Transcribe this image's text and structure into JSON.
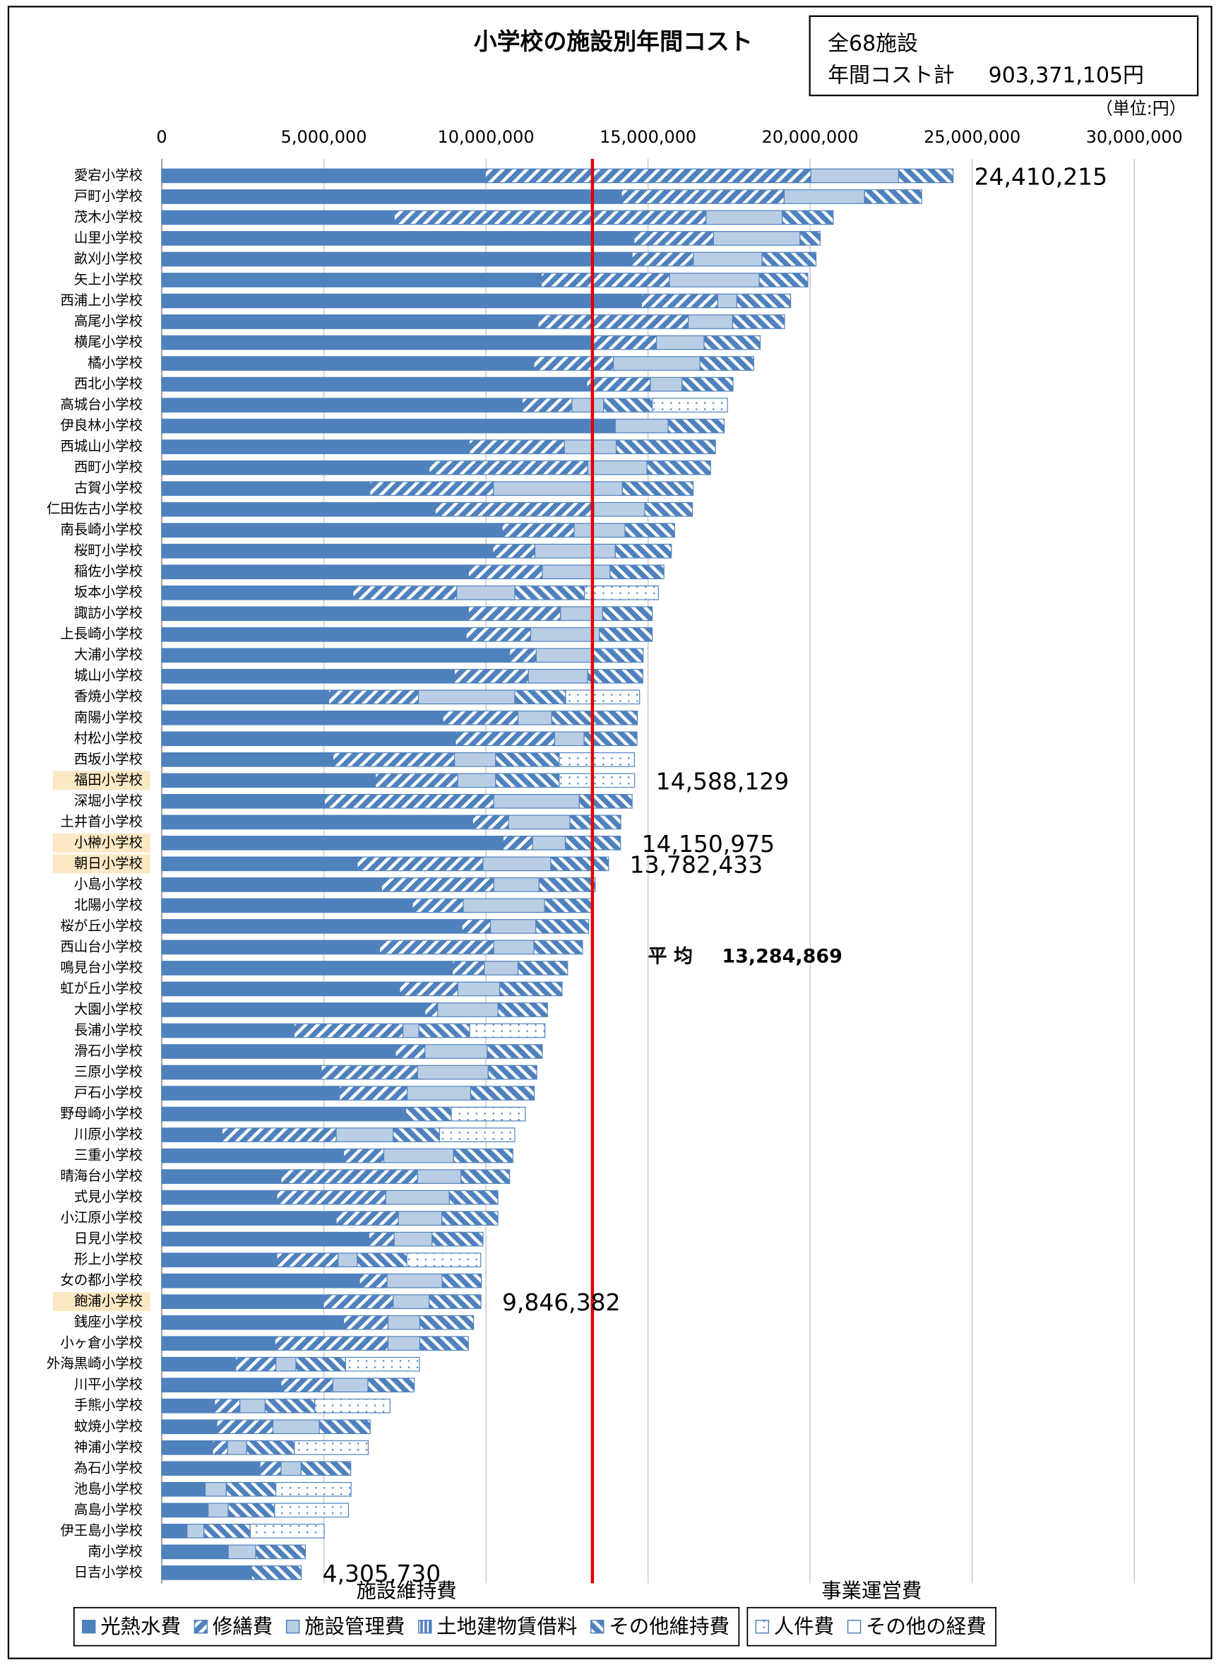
{
  "chart_data": {
    "type": "stacked_barh",
    "title": "小学校の施設別年間コスト",
    "info": {
      "total_label": "全68施設",
      "cost_label": "年間コスト計",
      "cost_value": "903,371,105円"
    },
    "unit": "（単位:円）",
    "xlim": [
      0,
      30000000
    ],
    "xticks": [
      0,
      {
        "value": 5000000,
        "label": "5,000,000"
      },
      {
        "value": 10000000,
        "label": "10,000,000"
      },
      {
        "value": 15000000,
        "label": "15,000,000"
      },
      {
        "value": 20000000,
        "label": "20,000,000"
      },
      {
        "value": 25000000,
        "label": "25,000,000"
      },
      {
        "value": 30000000,
        "label": "30,000,000"
      }
    ],
    "grid": true,
    "categories": [
      "愛宕小学校",
      "戸町小学校",
      "茂木小学校",
      "山里小学校",
      "畝刈小学校",
      "矢上小学校",
      "西浦上小学校",
      "高尾小学校",
      "横尾小学校",
      "橘小学校",
      "西北小学校",
      "高城台小学校",
      "伊良林小学校",
      "西城山小学校",
      "西町小学校",
      "古賀小学校",
      "仁田佐古小学校",
      "南長崎小学校",
      "桜町小学校",
      "稲佐小学校",
      "坂本小学校",
      "諏訪小学校",
      "上長崎小学校",
      "大浦小学校",
      "城山小学校",
      "香焼小学校",
      "南陽小学校",
      "村松小学校",
      "西坂小学校",
      "福田小学校",
      "深堀小学校",
      "土井首小学校",
      "小榊小学校",
      "朝日小学校",
      "小島小学校",
      "北陽小学校",
      "桜が丘小学校",
      "西山台小学校",
      "鳴見台小学校",
      "虹が丘小学校",
      "大園小学校",
      "長浦小学校",
      "滑石小学校",
      "三原小学校",
      "戸石小学校",
      "野母崎小学校",
      "川原小学校",
      "三重小学校",
      "晴海台小学校",
      "式見小学校",
      "小江原小学校",
      "日見小学校",
      "形上小学校",
      "女の都小学校",
      "飽浦小学校",
      "銭座小学校",
      "小ヶ倉小学校",
      "外海黒崎小学校",
      "川平小学校",
      "手熊小学校",
      "蚊焼小学校",
      "神浦小学校",
      "為石小学校",
      "池島小学校",
      "高島小学校",
      "伊王島小学校",
      "南小学校",
      "日吉小学校"
    ],
    "series": [
      {
        "name": "光熱水費",
        "color": "#4f81bd",
        "pattern": "solid",
        "values": [
          9980000,
          14180000,
          7170000,
          14570000,
          14510000,
          11710000,
          14800000,
          11610000,
          13270000,
          11480000,
          13110000,
          11120000,
          13990000,
          9490000,
          8250000,
          6420000,
          8440000,
          10500000,
          10210000,
          9460000,
          5900000,
          9460000,
          9390000,
          10730000,
          9030000,
          5150000,
          8670000,
          9060000,
          5280000,
          6590000,
          5020000,
          9590000,
          10530000,
          6030000,
          6780000,
          7730000,
          9260000,
          6720000,
          8970000,
          7340000,
          8120000,
          4080000,
          7210000,
          4920000,
          5480000,
          7530000,
          1860000,
          5610000,
          3680000,
          3550000,
          5380000,
          6390000,
          3550000,
          6100000,
          4990000,
          5610000,
          3490000,
          2280000,
          3680000,
          1630000,
          1700000,
          1570000,
          3030000,
          1340000,
          1430000,
          780000,
          2050000,
          2770000
        ]
      },
      {
        "name": "修繕費",
        "color": "#4f81bd",
        "pattern": "diagonal",
        "values": [
          10040000,
          5020000,
          9620000,
          2450000,
          1890000,
          3950000,
          2350000,
          4630000,
          1990000,
          2450000,
          1960000,
          1530000,
          0,
          2930000,
          4890000,
          3810000,
          4890000,
          2220000,
          1300000,
          2280000,
          3200000,
          2840000,
          1990000,
          820000,
          2280000,
          2770000,
          2320000,
          3060000,
          3750000,
          2540000,
          5220000,
          1110000,
          910000,
          3880000,
          3460000,
          1570000,
          880000,
          3520000,
          980000,
          1790000,
          390000,
          3360000,
          910000,
          2970000,
          2090000,
          0,
          3520000,
          1240000,
          4210000,
          3360000,
          1920000,
          780000,
          1890000,
          850000,
          2150000,
          1370000,
          3490000,
          1240000,
          1600000,
          780000,
          1730000,
          460000,
          650000,
          0,
          0,
          0,
          0,
          0
        ]
      },
      {
        "name": "施設管理費",
        "color": "#b9cde5",
        "pattern": "solid",
        "values": [
          2710000,
          2480000,
          2350000,
          2670000,
          2120000,
          2770000,
          590000,
          1370000,
          1470000,
          2670000,
          980000,
          980000,
          1630000,
          1600000,
          1830000,
          3980000,
          1570000,
          1570000,
          2480000,
          2090000,
          1790000,
          1300000,
          2120000,
          1730000,
          1830000,
          2970000,
          1040000,
          910000,
          1270000,
          1170000,
          2640000,
          1890000,
          1010000,
          2090000,
          1400000,
          2510000,
          1400000,
          1240000,
          1040000,
          1300000,
          1860000,
          490000,
          1920000,
          2180000,
          1960000,
          0,
          1760000,
          2150000,
          1340000,
          1960000,
          1340000,
          1170000,
          590000,
          1700000,
          1110000,
          980000,
          980000,
          620000,
          1080000,
          780000,
          1430000,
          590000,
          620000,
          650000,
          620000,
          520000,
          850000,
          0
        ]
      },
      {
        "name": "土地建物賃借料",
        "color": "#4f81bd",
        "pattern": "vstripe",
        "values": [
          0,
          0,
          0,
          0,
          0,
          0,
          0,
          0,
          0,
          0,
          0,
          0,
          0,
          0,
          0,
          0,
          0,
          0,
          0,
          0,
          0,
          0,
          0,
          0,
          0,
          0,
          0,
          0,
          0,
          0,
          0,
          0,
          0,
          0,
          0,
          0,
          0,
          0,
          0,
          0,
          0,
          0,
          0,
          0,
          0,
          0,
          0,
          0,
          0,
          0,
          0,
          0,
          0,
          0,
          0,
          0,
          0,
          0,
          0,
          0,
          0,
          0,
          0,
          0,
          0,
          0,
          0,
          0
        ]
      },
      {
        "name": "その他維持費",
        "color": "#4f81bd",
        "pattern": "backdiag",
        "values": [
          1680215,
          1760000,
          1570000,
          620000,
          1660000,
          1500000,
          1660000,
          1600000,
          1730000,
          1660000,
          1570000,
          1500000,
          1730000,
          3060000,
          1960000,
          2180000,
          1470000,
          1530000,
          1730000,
          1660000,
          2150000,
          1530000,
          1630000,
          1570000,
          1700000,
          1570000,
          2640000,
          1630000,
          1960000,
          1960000,
          1630000,
          1570000,
          1700975,
          1782433,
          1730000,
          1500000,
          1630000,
          1500000,
          1530000,
          1920000,
          1530000,
          1570000,
          1700000,
          1500000,
          1960000,
          1400000,
          1430000,
          1830000,
          1500000,
          1500000,
          1730000,
          1570000,
          1530000,
          1210000,
          1596382,
          1660000,
          1500000,
          1530000,
          1430000,
          1530000,
          1570000,
          1470000,
          1530000,
          1530000,
          1430000,
          1430000,
          1530000,
          1535730
        ]
      },
      {
        "name": "人件費",
        "color": "#4f81bd",
        "pattern": "dots",
        "values": [
          0,
          0,
          0,
          0,
          0,
          0,
          0,
          0,
          0,
          0,
          0,
          2320000,
          0,
          0,
          0,
          0,
          0,
          0,
          0,
          0,
          2280000,
          0,
          0,
          0,
          0,
          2280000,
          0,
          0,
          2320000,
          2328129,
          0,
          0,
          0,
          0,
          0,
          0,
          0,
          0,
          0,
          0,
          0,
          2320000,
          0,
          0,
          0,
          2280000,
          2320000,
          0,
          0,
          0,
          0,
          0,
          2280000,
          0,
          0,
          0,
          0,
          2280000,
          0,
          2320000,
          0,
          2280000,
          0,
          2320000,
          2280000,
          2280000,
          0,
          0
        ]
      },
      {
        "name": "その他の経費",
        "color": "#ffffff",
        "pattern": "solid",
        "values": [
          0,
          0,
          0,
          0,
          0,
          0,
          0,
          0,
          0,
          0,
          0,
          0,
          0,
          0,
          0,
          0,
          0,
          0,
          0,
          0,
          0,
          0,
          0,
          0,
          0,
          0,
          0,
          0,
          0,
          0,
          0,
          0,
          0,
          0,
          0,
          0,
          0,
          0,
          0,
          0,
          0,
          0,
          0,
          0,
          0,
          0,
          0,
          0,
          0,
          0,
          0,
          0,
          0,
          0,
          0,
          0,
          0,
          0,
          0,
          0,
          0,
          0,
          0,
          0,
          0,
          0,
          0,
          0
        ]
      }
    ],
    "legend_groups": [
      {
        "label": "施設維持費",
        "count": 5
      },
      {
        "label": "事業運営費",
        "count": 2
      }
    ],
    "average": {
      "label": "平 均",
      "value": 13284869,
      "value_label": "13,284,869",
      "color": "#e00000"
    },
    "annotations": [
      {
        "row": 0,
        "value": 24410215,
        "label": "24,410,215",
        "highlight": false
      },
      {
        "row": 29,
        "value": 14588129,
        "label": "14,588,129",
        "highlight": true
      },
      {
        "row": 32,
        "value": 14150975,
        "label": "14,150,975",
        "highlight": true
      },
      {
        "row": 33,
        "value": 13782433,
        "label": "13,782,433",
        "highlight": true
      },
      {
        "row": 54,
        "value": 9846382,
        "label": "9,846,382",
        "highlight": true
      },
      {
        "row": 67,
        "value": 4305730,
        "label": "4,305,730",
        "highlight": false
      }
    ]
  }
}
